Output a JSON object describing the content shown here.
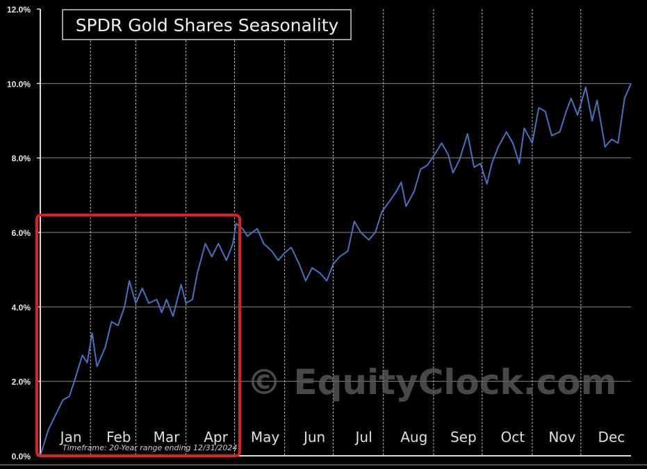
{
  "chart_data": {
    "type": "line",
    "title": "SPDR Gold Shares Seasonality",
    "xlabel": "",
    "ylabel": "",
    "xlim": [
      0,
      365
    ],
    "ylim": [
      0,
      12
    ],
    "y_ticks": [
      "0.0%",
      "2.0%",
      "4.0%",
      "6.0%",
      "8.0%",
      "10.0%",
      "12.0%"
    ],
    "month_labels": [
      "Jan",
      "Feb",
      "Mar",
      "Apr",
      "May",
      "Jun",
      "Jul",
      "Aug",
      "Sep",
      "Oct",
      "Nov",
      "Dec"
    ],
    "grid": "horizontal solid, vertical dashed at month boundaries",
    "series": [
      {
        "color": "#4a72c4",
        "x": [
          0,
          5,
          9,
          14,
          18,
          21,
          26,
          29,
          32,
          35,
          40,
          44,
          48,
          52,
          55,
          59,
          63,
          67,
          72,
          75,
          78,
          82,
          87,
          90,
          94,
          97,
          102,
          106,
          110,
          115,
          119,
          121,
          125,
          128,
          134,
          138,
          143,
          147,
          151,
          155,
          160,
          164,
          168,
          173,
          177,
          181,
          185,
          190,
          194,
          198,
          203,
          207,
          211,
          216,
          220,
          223,
          226,
          231,
          235,
          239,
          243,
          248,
          252,
          255,
          259,
          264,
          268,
          272,
          276,
          279,
          283,
          288,
          292,
          296,
          299,
          304,
          308,
          312,
          316,
          321,
          325,
          328,
          332,
          337,
          341,
          344,
          349,
          353,
          357,
          361,
          365
        ],
        "y": [
          0,
          0.7,
          1.06,
          1.5,
          1.6,
          2.0,
          2.7,
          2.5,
          3.3,
          2.4,
          2.9,
          3.6,
          3.5,
          4.0,
          4.7,
          4.1,
          4.5,
          4.1,
          4.2,
          3.85,
          4.2,
          3.75,
          4.6,
          4.1,
          4.2,
          4.9,
          5.7,
          5.35,
          5.7,
          5.25,
          5.7,
          6.24,
          6.1,
          5.9,
          6.1,
          5.7,
          5.5,
          5.25,
          5.45,
          5.6,
          5.15,
          4.7,
          5.05,
          4.9,
          4.7,
          5.15,
          5.35,
          5.5,
          6.3,
          6.0,
          5.8,
          6.0,
          6.55,
          6.85,
          7.1,
          7.35,
          6.7,
          7.1,
          7.7,
          7.8,
          8.05,
          8.4,
          8.1,
          7.6,
          7.95,
          8.65,
          7.75,
          7.85,
          7.3,
          7.85,
          8.3,
          8.7,
          8.4,
          7.85,
          8.8,
          8.4,
          9.35,
          9.25,
          8.6,
          8.7,
          9.25,
          9.6,
          9.15,
          9.9,
          9.0,
          9.55,
          8.3,
          8.5,
          8.4,
          9.6,
          10.0
        ]
      }
    ],
    "annotations": {
      "timeframe": "Timeframe: 20-Year range ending 12/31/2024",
      "watermark": "© EquityClock.com",
      "highlight_box": {
        "x_range_months": [
          "Jan",
          "Apr"
        ],
        "color": "#e0201c"
      }
    }
  }
}
